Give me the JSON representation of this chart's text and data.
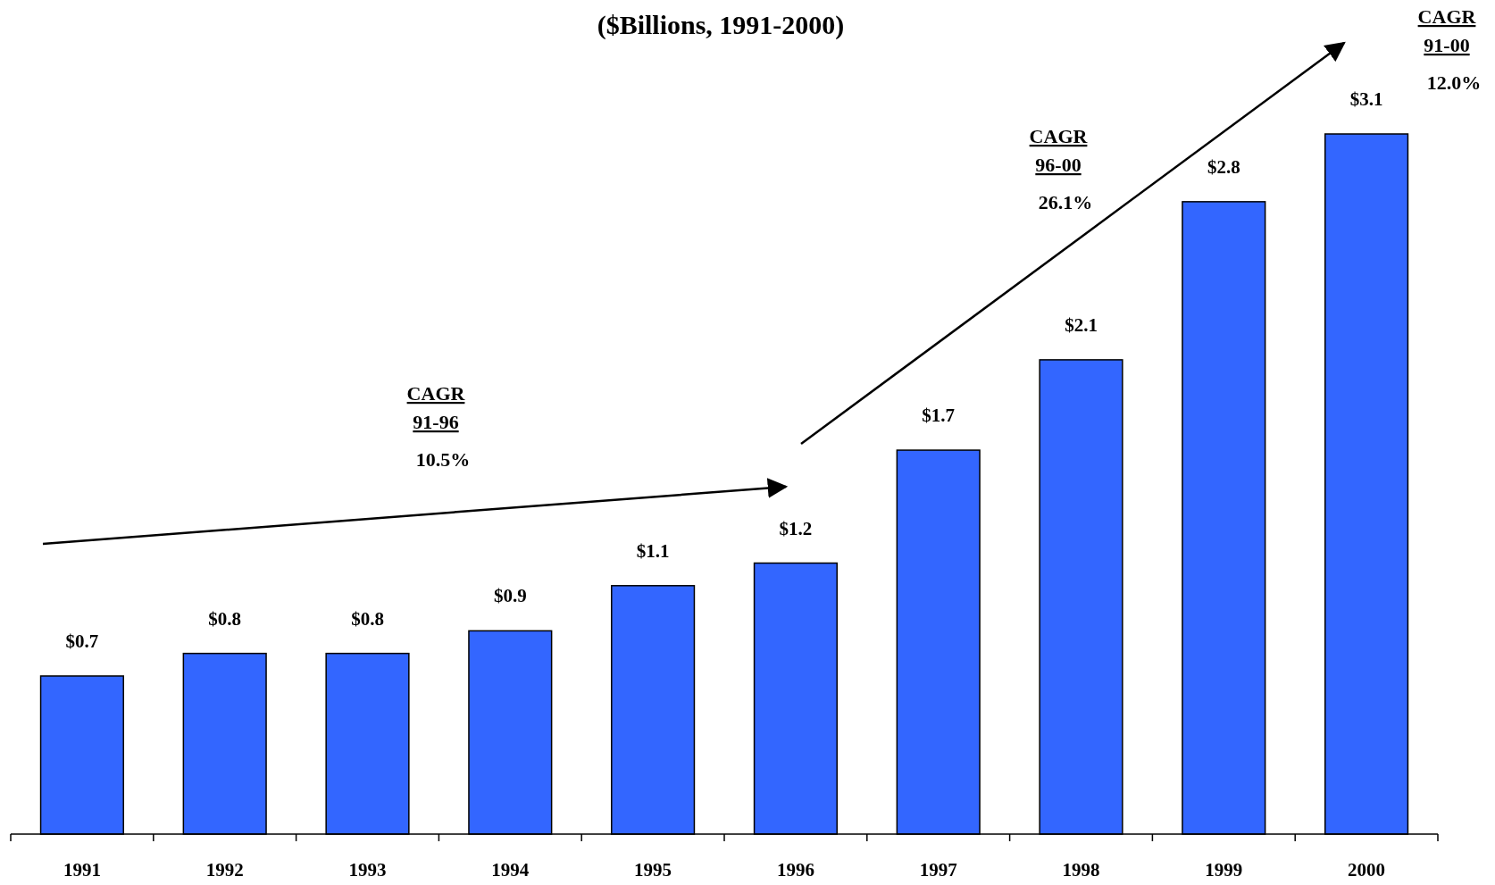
{
  "chart_data": {
    "type": "bar",
    "title": "($Billions, 1991-2000)",
    "categories": [
      "1991",
      "1992",
      "1993",
      "1994",
      "1995",
      "1996",
      "1997",
      "1998",
      "1999",
      "2000"
    ],
    "values": [
      0.7,
      0.8,
      0.8,
      0.9,
      1.1,
      1.2,
      1.7,
      2.1,
      2.8,
      3.1
    ],
    "value_labels": [
      "$0.7",
      "$0.8",
      "$0.8",
      "$0.9",
      "$1.1",
      "$1.2",
      "$1.7",
      "$2.1",
      "$2.8",
      "$3.1"
    ],
    "color": "#3366ff",
    "annotations": [
      "CAGR\n91-96\n10.5%",
      "CAGR\n96-00\n26.1%",
      "CAGR\n91-00\n12.0%"
    ]
  }
}
